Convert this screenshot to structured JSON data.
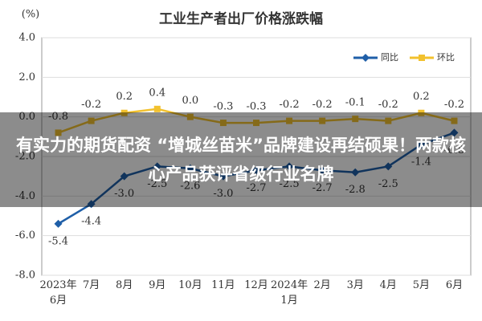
{
  "chart_data": {
    "type": "line",
    "title": "工业生产者出厂价格涨跌幅",
    "y_label": "(%)",
    "categories": [
      "2023年\n6月",
      "7月",
      "8月",
      "9月",
      "10月",
      "11月",
      "12月",
      "2024年\n1月",
      "2月",
      "3月",
      "4月",
      "5月",
      "6月"
    ],
    "series": [
      {
        "name": "同比",
        "color": "#1f5fa8",
        "values": [
          -5.4,
          -4.4,
          -3.0,
          -2.5,
          -2.6,
          -3.0,
          -2.7,
          -2.5,
          -2.7,
          -2.8,
          -2.5,
          -1.4,
          -0.8
        ],
        "value_labels": [
          "-5.4",
          "-4.4",
          "-3.0",
          "-2.5",
          "-2.6",
          "-3.0",
          "-2.7",
          "-2.5",
          "-2.7",
          "-2.8",
          "-2.5",
          "-1.4",
          "-0.8"
        ]
      },
      {
        "name": "环比",
        "color": "#f2c12e",
        "values": [
          -0.8,
          -0.2,
          0.2,
          0.4,
          0.0,
          -0.3,
          -0.3,
          -0.2,
          -0.2,
          -0.1,
          -0.2,
          0.2,
          -0.2
        ],
        "value_labels": [
          "-0.8",
          "-0.2",
          "0.2",
          "0.4",
          "0.0",
          "-0.3",
          "-0.3",
          "-0.2",
          "-0.2",
          "-0.1",
          "-0.2",
          "0.2",
          "-0.2"
        ]
      }
    ],
    "ylim": [
      -8,
      4
    ],
    "yticks": [
      {
        "value": -8,
        "label": "-8.0"
      },
      {
        "value": -6,
        "label": "-6.0"
      },
      {
        "value": -4,
        "label": "-4.0"
      },
      {
        "value": -2,
        "label": "-2.0"
      },
      {
        "value": 0,
        "label": "0.0"
      },
      {
        "value": 2,
        "label": "2.0"
      },
      {
        "value": 4,
        "label": "4.0"
      }
    ],
    "grid": true,
    "legend": "upper right"
  },
  "overlay": {
    "headline": "有实力的期货配资 “增城丝苗米”品牌建设再结硕果！两款核心产品获评省级行业名牌"
  }
}
